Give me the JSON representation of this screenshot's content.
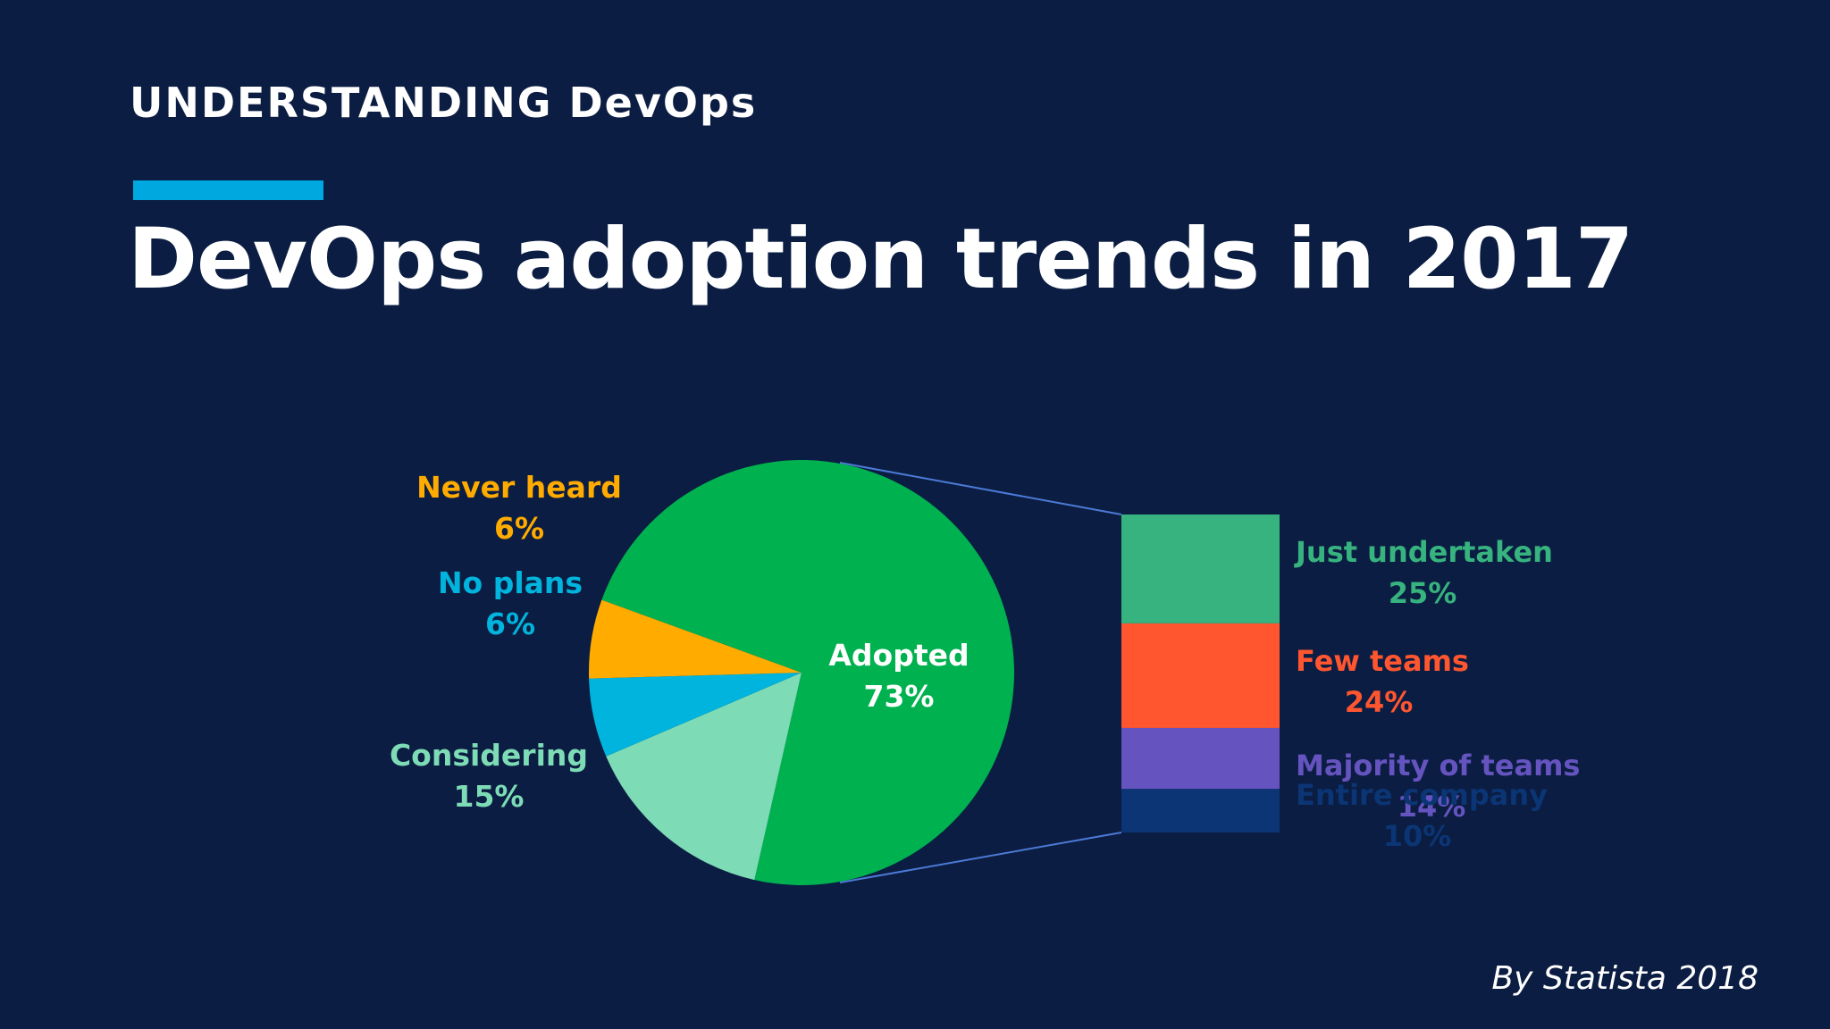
{
  "header": {
    "eyebrow": "UNDERSTANDING DevOps",
    "title": "DevOps adoption trends in 2017",
    "accent_color": "#00a8e0"
  },
  "credit": "By Statista 2018",
  "chart_data": {
    "type": "pie",
    "title": "DevOps adoption trends in 2017",
    "pie": {
      "slices": [
        {
          "label": "Adopted",
          "value": 73,
          "display": "73%",
          "color": "#00b14f"
        },
        {
          "label": "Considering",
          "value": 15,
          "display": "15%",
          "color": "#7ddbb6"
        },
        {
          "label": "No plans",
          "value": 6,
          "display": "6%",
          "color": "#00b4dd"
        },
        {
          "label": "Never heard",
          "value": 6,
          "display": "6%",
          "color": "#ffab00"
        }
      ]
    },
    "breakdown": {
      "of": "Adopted",
      "segments": [
        {
          "label": "Just undertaken",
          "value": 25,
          "display": "25%",
          "color": "#36b37e"
        },
        {
          "label": "Few teams",
          "value": 24,
          "display": "24%",
          "color": "#ff5630"
        },
        {
          "label": "Majority of teams",
          "value": 14,
          "display": "14%",
          "color": "#6554c0"
        },
        {
          "label": "Entire company",
          "value": 10,
          "display": "10%",
          "color": "#0b3574"
        }
      ]
    },
    "connector_color": "#4c7ad6"
  }
}
